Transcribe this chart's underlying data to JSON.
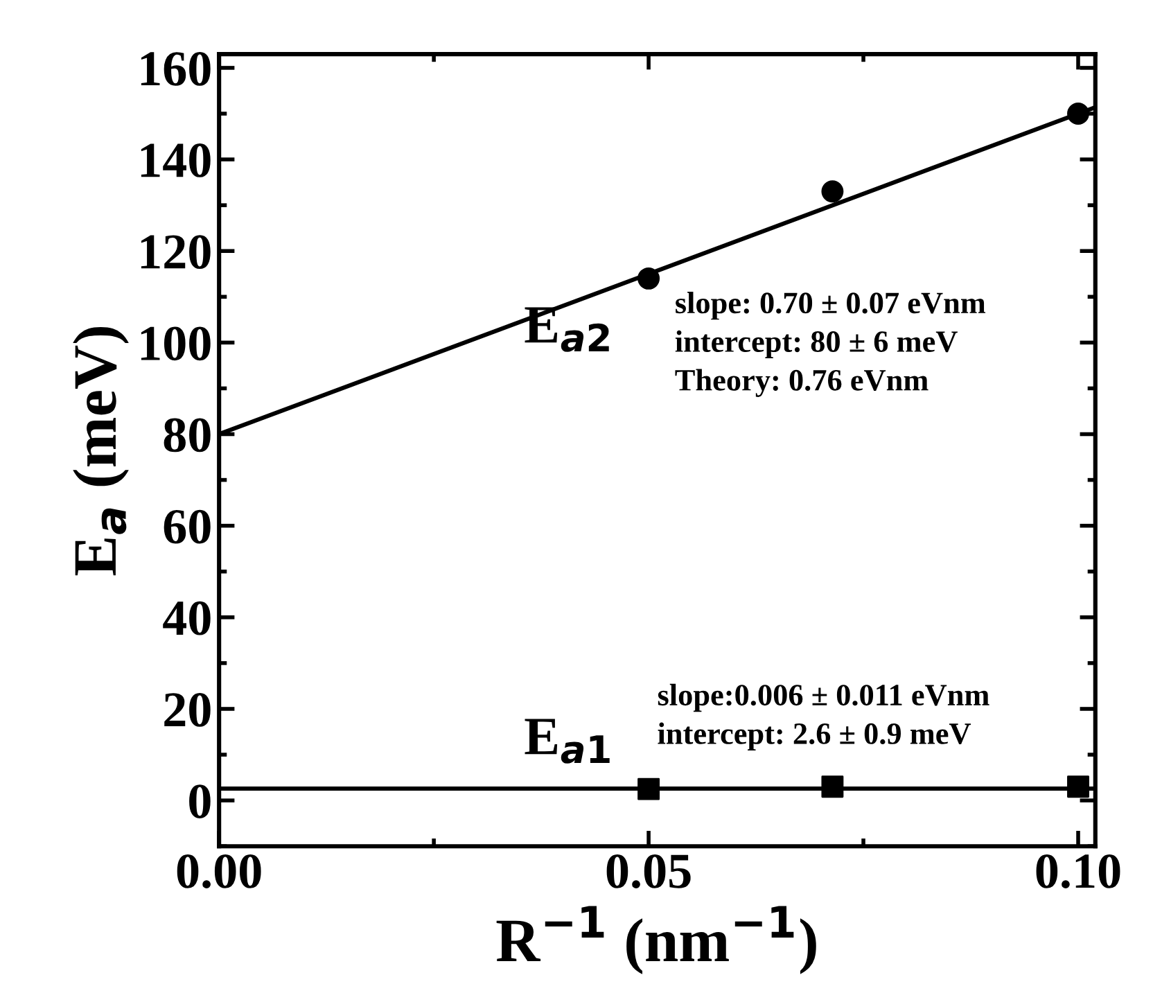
{
  "chart_data": {
    "type": "scatter",
    "xlabel": "R$^{−1}$ (nm$^{−1}$)",
    "ylabel": "E$_{a}$ (meV)",
    "xlim": [
      0,
      0.102
    ],
    "ylim": [
      -10,
      163
    ],
    "xticks": [
      {
        "value": 0,
        "label": "0.00"
      },
      0.05,
      {
        "value": 0.1,
        "label": "0.10"
      }
    ],
    "yticks": [
      0,
      20,
      40,
      60,
      80,
      100,
      120,
      140,
      160
    ],
    "grid": false,
    "legend": false,
    "series": [
      {
        "name": "E$_{a2}$",
        "marker": "circle",
        "color": "#000000",
        "x": [
          0.05,
          0.0714,
          0.1
        ],
        "values": [
          114,
          133,
          150
        ]
      },
      {
        "name": "E$_{a1}$",
        "marker": "square",
        "color": "#000000",
        "x": [
          0.05,
          0.0714,
          0.1
        ],
        "values": [
          2.5,
          3,
          3
        ]
      },
      {
        "type": "line",
        "color": "#000000",
        "line_style": "solid",
        "x": [
          0,
          0.102
        ],
        "values": [
          80,
          151.4
        ]
      },
      {
        "type": "line",
        "color": "#000000",
        "line_style": "solid",
        "x": [
          0,
          0.102
        ],
        "values": [
          2.6,
          2.6
        ]
      }
    ],
    "annotations": [
      "slope: 0.70 ± 0.07 eVnm\nintercept: 80 ± 6 meV\nTheory: 0.76 eVnm",
      "slope:0.006 ± 0.011 eVnm\nintercept: 2.6 ± 0.9 meV"
    ]
  }
}
